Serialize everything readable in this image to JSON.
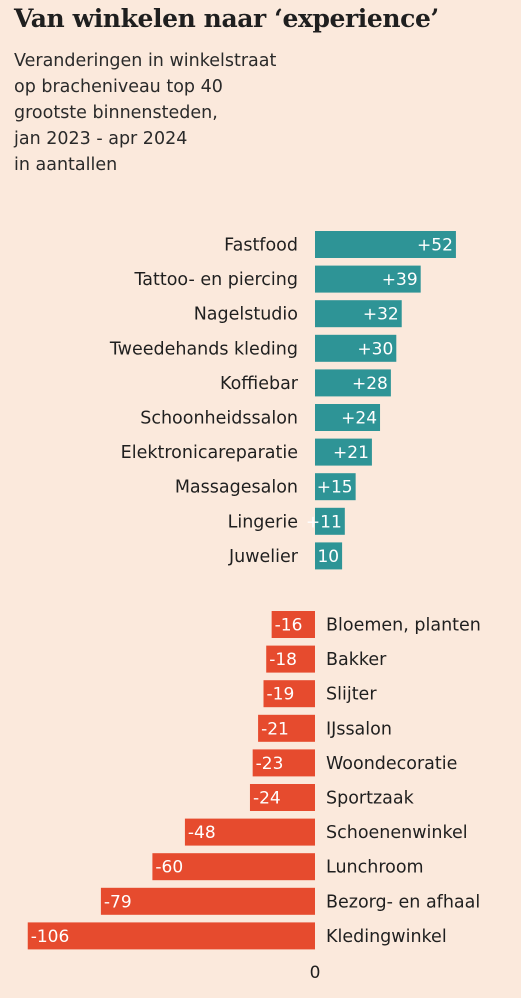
{
  "chart_data": {
    "type": "bar",
    "orientation": "horizontal",
    "title": "Van winkelen naar ‘experience’",
    "subtitle_lines": [
      "Veranderingen in winkelstraat",
      "op bracheniveau top 40",
      "grootste binnensteden,",
      "jan 2023 - apr 2024",
      "in aantallen"
    ],
    "zero_label": "0",
    "colors": {
      "positive": "#2e9496",
      "negative": "#e64b2e",
      "background": "#fbe9dc"
    },
    "positive": [
      {
        "category": "Fastfood",
        "value": 52,
        "label": "+52"
      },
      {
        "category": "Tattoo- en piercing",
        "value": 39,
        "label": "+39"
      },
      {
        "category": "Nagelstudio",
        "value": 32,
        "label": "+32"
      },
      {
        "category": "Tweedehands kleding",
        "value": 30,
        "label": "+30"
      },
      {
        "category": "Koffiebar",
        "value": 28,
        "label": "+28"
      },
      {
        "category": "Schoonheidssalon",
        "value": 24,
        "label": "+24"
      },
      {
        "category": "Elektronicareparatie",
        "value": 21,
        "label": "+21"
      },
      {
        "category": "Massagesalon",
        "value": 15,
        "label": "+15"
      },
      {
        "category": "Lingerie",
        "value": 11,
        "label": "+11"
      },
      {
        "category": "Juwelier",
        "value": 10,
        "label": "10"
      }
    ],
    "negative": [
      {
        "category": "Bloemen, planten",
        "value": -16,
        "label": "-16"
      },
      {
        "category": "Bakker",
        "value": -18,
        "label": "-18"
      },
      {
        "category": "Slijter",
        "value": -19,
        "label": "-19"
      },
      {
        "category": "IJssalon",
        "value": -21,
        "label": "-21"
      },
      {
        "category": "Woondecoratie",
        "value": -23,
        "label": "-23"
      },
      {
        "category": "Sportzaak",
        "value": -24,
        "label": "-24"
      },
      {
        "category": "Schoenenwinkel",
        "value": -48,
        "label": "-48"
      },
      {
        "category": "Lunchroom",
        "value": -60,
        "label": "-60"
      },
      {
        "category": "Bezorg- en afhaal",
        "value": -79,
        "label": "-79"
      },
      {
        "category": "Kledingwinkel",
        "value": -106,
        "label": "-106"
      }
    ]
  }
}
